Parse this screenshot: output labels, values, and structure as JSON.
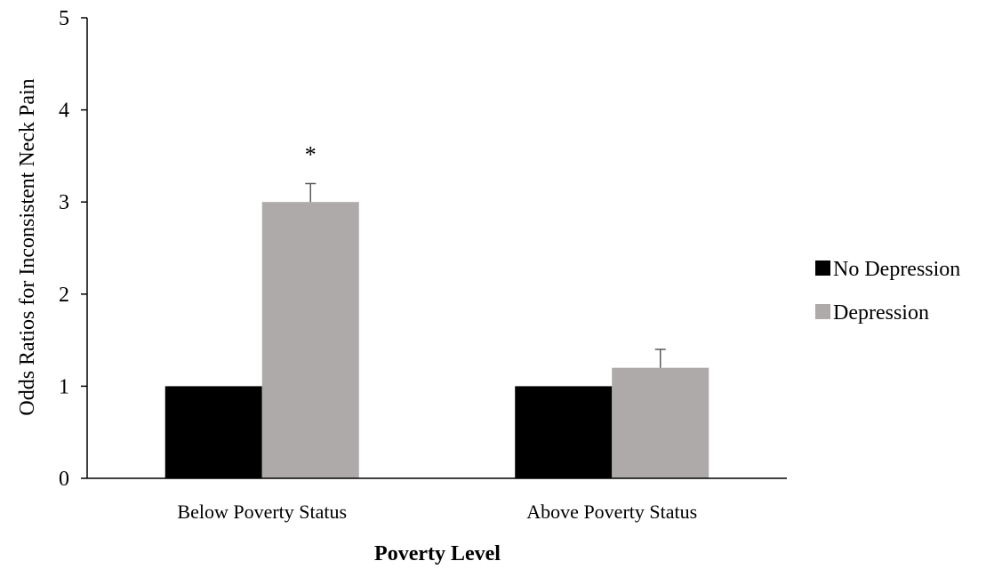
{
  "chart_data": {
    "type": "bar",
    "categories": [
      "Below Poverty Status",
      "Above Poverty Status"
    ],
    "series": [
      {
        "name": "No Depression",
        "values": [
          1,
          1
        ],
        "errors": [
          null,
          null
        ],
        "color": "#000000"
      },
      {
        "name": "Depression",
        "values": [
          3.0,
          1.2
        ],
        "errors": [
          0.2,
          0.2
        ],
        "color": "#aeaaaa"
      }
    ],
    "annotations": [
      {
        "category": 0,
        "series": 1,
        "text": "*"
      }
    ],
    "title": "",
    "xlabel": "Poverty Level",
    "ylabel": "Odds Ratios for Inconsistent Neck Pain",
    "ylim": [
      0,
      5
    ],
    "yticks": [
      "0",
      "1",
      "2",
      "3",
      "4",
      "5"
    ],
    "grid": false,
    "legend_position": "right"
  }
}
